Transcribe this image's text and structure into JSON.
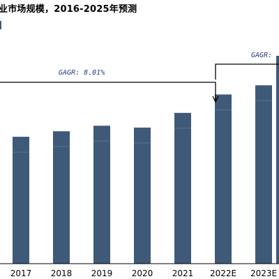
{
  "chart_data": {
    "type": "bar",
    "title": "业市场规模，2016-2025年预测",
    "categories": [
      "2017",
      "2018",
      "2019",
      "2020",
      "2021",
      "2022E",
      "2023E"
    ],
    "values": [
      69,
      72,
      75,
      74,
      82,
      92,
      97
    ],
    "ylim": [
      0,
      110
    ],
    "series_color": "#3f5a78",
    "annotations": [
      {
        "label": "GAGR: 8.01%"
      },
      {
        "label": "GAGR: "
      }
    ],
    "grid": false,
    "legend": "none"
  }
}
